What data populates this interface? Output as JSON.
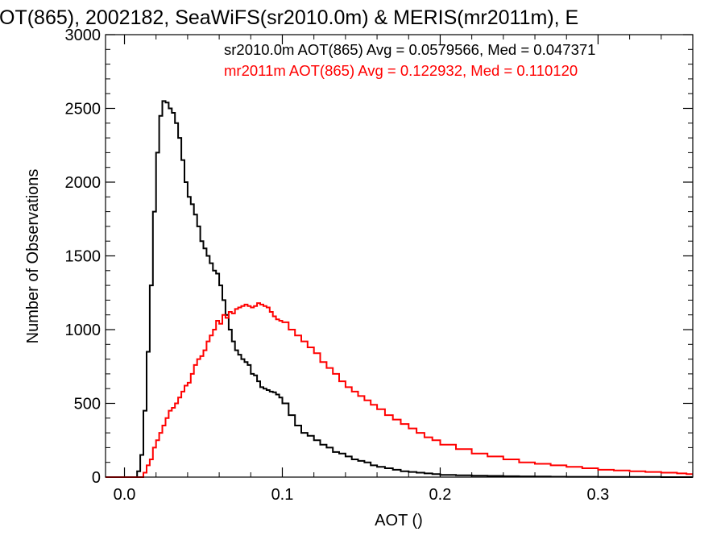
{
  "chart_data": {
    "type": "line",
    "title": "OT(865), 2002182, SeaWiFS(sr2010.0m) & MERIS(mr2011m), E",
    "xlabel": "AOT ()",
    "ylabel": "Number of Observations",
    "xlim": [
      -0.012,
      0.36
    ],
    "ylim": [
      0,
      3000
    ],
    "xticks": [
      0.0,
      0.1,
      0.2,
      0.3
    ],
    "xtick_labels": [
      "0.0",
      "0.1",
      "0.2",
      "0.3"
    ],
    "yticks": [
      0,
      500,
      1000,
      1500,
      2000,
      2500,
      3000
    ],
    "ytick_labels": [
      "0",
      "500",
      "1000",
      "1500",
      "2000",
      "2500",
      "3000"
    ],
    "grid": false,
    "annotations": [
      {
        "text": "sr2010.0m AOT(865) Avg = 0.0579566, Med = 0.047371",
        "color": "#000000"
      },
      {
        "text": "mr2011m AOT(865) Avg = 0.122932, Med = 0.110120",
        "color": "#ff0000"
      }
    ],
    "series": [
      {
        "color": "#000000",
        "step": true,
        "x": [
          -0.012,
          0.006,
          0.008,
          0.01,
          0.012,
          0.014,
          0.016,
          0.018,
          0.02,
          0.022,
          0.024,
          0.026,
          0.028,
          0.03,
          0.032,
          0.034,
          0.036,
          0.038,
          0.04,
          0.042,
          0.044,
          0.046,
          0.048,
          0.05,
          0.052,
          0.054,
          0.056,
          0.058,
          0.06,
          0.062,
          0.064,
          0.066,
          0.068,
          0.07,
          0.072,
          0.074,
          0.076,
          0.078,
          0.08,
          0.082,
          0.084,
          0.086,
          0.088,
          0.09,
          0.092,
          0.094,
          0.096,
          0.098,
          0.1,
          0.104,
          0.108,
          0.112,
          0.116,
          0.12,
          0.124,
          0.128,
          0.132,
          0.136,
          0.14,
          0.144,
          0.148,
          0.152,
          0.156,
          0.16,
          0.165,
          0.17,
          0.175,
          0.18,
          0.185,
          0.19,
          0.195,
          0.2,
          0.21,
          0.22,
          0.23,
          0.24,
          0.25,
          0.26,
          0.27,
          0.28,
          0.29,
          0.3,
          0.32,
          0.34,
          0.36
        ],
        "values": [
          0,
          0,
          40,
          150,
          450,
          850,
          1300,
          1800,
          2200,
          2450,
          2550,
          2540,
          2500,
          2470,
          2400,
          2300,
          2150,
          2000,
          1900,
          1850,
          1780,
          1700,
          1600,
          1550,
          1500,
          1450,
          1400,
          1380,
          1300,
          1200,
          1100,
          1000,
          920,
          860,
          830,
          800,
          780,
          760,
          700,
          690,
          650,
          610,
          600,
          590,
          580,
          575,
          560,
          540,
          500,
          420,
          350,
          300,
          280,
          250,
          220,
          200,
          170,
          160,
          140,
          120,
          110,
          100,
          80,
          70,
          60,
          50,
          40,
          35,
          30,
          25,
          20,
          15,
          12,
          10,
          8,
          6,
          5,
          4,
          3,
          2,
          2,
          1,
          1,
          0,
          0
        ]
      },
      {
        "color": "#ff0000",
        "step": true,
        "x": [
          -0.012,
          0.01,
          0.012,
          0.014,
          0.016,
          0.018,
          0.02,
          0.022,
          0.024,
          0.026,
          0.028,
          0.03,
          0.032,
          0.034,
          0.036,
          0.038,
          0.04,
          0.042,
          0.044,
          0.046,
          0.048,
          0.05,
          0.052,
          0.054,
          0.056,
          0.058,
          0.06,
          0.062,
          0.064,
          0.066,
          0.068,
          0.07,
          0.072,
          0.074,
          0.076,
          0.078,
          0.08,
          0.082,
          0.084,
          0.086,
          0.088,
          0.09,
          0.092,
          0.094,
          0.096,
          0.098,
          0.1,
          0.104,
          0.108,
          0.112,
          0.116,
          0.12,
          0.124,
          0.128,
          0.132,
          0.136,
          0.14,
          0.144,
          0.148,
          0.152,
          0.156,
          0.16,
          0.165,
          0.17,
          0.175,
          0.18,
          0.185,
          0.19,
          0.195,
          0.2,
          0.21,
          0.22,
          0.23,
          0.24,
          0.25,
          0.26,
          0.27,
          0.28,
          0.29,
          0.3,
          0.31,
          0.32,
          0.33,
          0.34,
          0.35,
          0.356
        ],
        "values": [
          0,
          0,
          30,
          80,
          120,
          200,
          250,
          300,
          350,
          400,
          450,
          470,
          500,
          540,
          580,
          620,
          640,
          700,
          760,
          800,
          820,
          860,
          920,
          960,
          1000,
          1060,
          1040,
          1100,
          1080,
          1120,
          1110,
          1140,
          1150,
          1160,
          1170,
          1160,
          1150,
          1160,
          1180,
          1170,
          1160,
          1150,
          1120,
          1090,
          1070,
          1060,
          1050,
          1000,
          960,
          920,
          880,
          840,
          780,
          740,
          700,
          650,
          610,
          580,
          550,
          520,
          490,
          460,
          420,
          390,
          360,
          330,
          300,
          270,
          250,
          220,
          190,
          160,
          140,
          120,
          100,
          90,
          80,
          70,
          60,
          50,
          45,
          40,
          35,
          30,
          25,
          20
        ]
      }
    ]
  }
}
